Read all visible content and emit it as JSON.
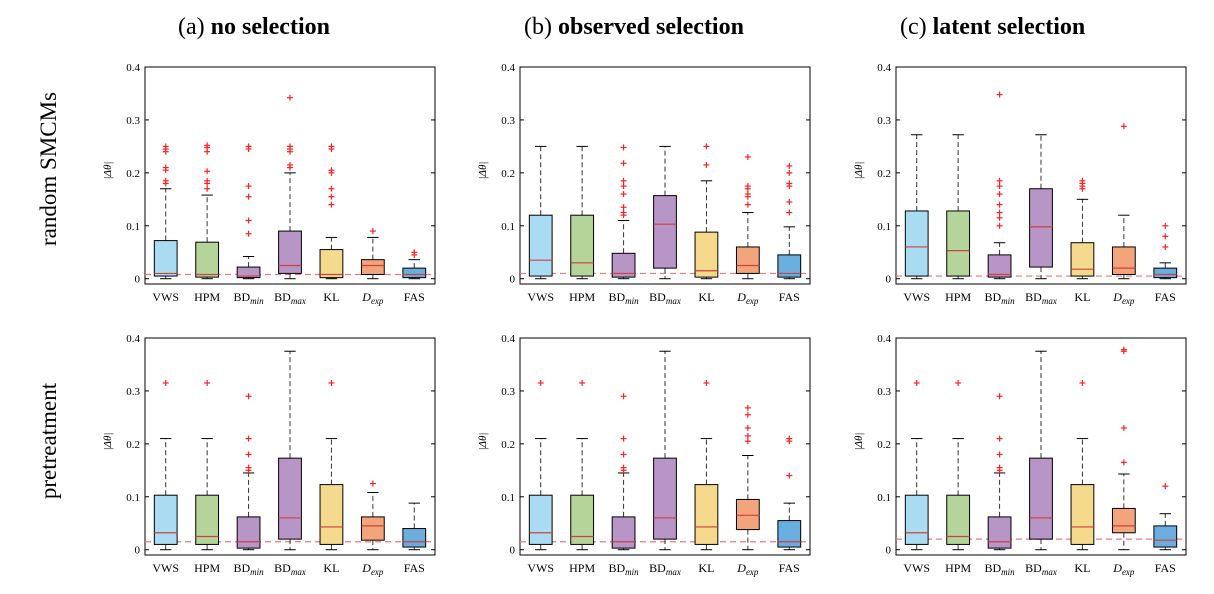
{
  "columns": [
    {
      "prefix": "(a) ",
      "bold": "no selection"
    },
    {
      "prefix": "(b) ",
      "bold": "observed selection"
    },
    {
      "prefix": "(c) ",
      "bold": "latent selection"
    }
  ],
  "rows": [
    "random SMCMs",
    "pretreatment"
  ],
  "colors": {
    "VWS": "#a9dcf3",
    "HPM": "#b5d49a",
    "BDmin": "#b795c6",
    "BDmax": "#b795c6",
    "KL": "#f5d98c",
    "Dexp": "#f2a47a",
    "FAS": "#6aaee0",
    "outlier": "#ff2020",
    "reference": "#e8787c"
  },
  "chart_data": [
    {
      "type": "box",
      "panel": "(a) no selection / random SMCMs",
      "ylabel": "|Δθ|",
      "ylim": [
        -0.01,
        0.4
      ],
      "yticks": [
        0,
        0.1,
        0.2,
        0.3,
        0.4
      ],
      "reference_line": 0.008,
      "categories": [
        "VWS",
        "HPM",
        "BDmin",
        "BDmax",
        "KL",
        "Dexp",
        "FAS"
      ],
      "boxes": [
        {
          "min": 0,
          "q1": 0.005,
          "median": 0.01,
          "q3": 0.072,
          "max": 0.17,
          "outliers": [
            0.185,
            0.18,
            0.205,
            0.21,
            0.24,
            0.245,
            0.25
          ]
        },
        {
          "min": 0,
          "q1": 0.003,
          "median": 0.008,
          "q3": 0.069,
          "max": 0.158,
          "outliers": [
            0.17,
            0.18,
            0.185,
            0.203,
            0.24,
            0.248,
            0.252
          ]
        },
        {
          "min": 0,
          "q1": 0.002,
          "median": 0.005,
          "q3": 0.022,
          "max": 0.042,
          "outliers": [
            0.085,
            0.11,
            0.155,
            0.175,
            0.245,
            0.25
          ]
        },
        {
          "min": 0,
          "q1": 0.01,
          "median": 0.025,
          "q3": 0.09,
          "max": 0.2,
          "outliers": [
            0.21,
            0.215,
            0.24,
            0.245,
            0.25,
            0.342
          ]
        },
        {
          "min": 0,
          "q1": 0.002,
          "median": 0.008,
          "q3": 0.055,
          "max": 0.078,
          "outliers": [
            0.14,
            0.155,
            0.17,
            0.2,
            0.205,
            0.245,
            0.25
          ]
        },
        {
          "min": 0,
          "q1": 0.008,
          "median": 0.025,
          "q3": 0.036,
          "max": 0.078,
          "outliers": [
            0.09
          ]
        },
        {
          "min": 0,
          "q1": 0.002,
          "median": 0.008,
          "q3": 0.02,
          "max": 0.036,
          "outliers": [
            0.045,
            0.05
          ]
        }
      ]
    },
    {
      "type": "box",
      "panel": "(b) observed selection / random SMCMs",
      "ylabel": "|Δθ|",
      "ylim": [
        -0.01,
        0.4
      ],
      "yticks": [
        0,
        0.1,
        0.2,
        0.3,
        0.4
      ],
      "reference_line": 0.01,
      "categories": [
        "VWS",
        "HPM",
        "BDmin",
        "BDmax",
        "KL",
        "Dexp",
        "FAS"
      ],
      "boxes": [
        {
          "min": 0,
          "q1": 0.005,
          "median": 0.035,
          "q3": 0.12,
          "max": 0.25,
          "outliers": []
        },
        {
          "min": 0,
          "q1": 0.005,
          "median": 0.03,
          "q3": 0.12,
          "max": 0.25,
          "outliers": []
        },
        {
          "min": 0,
          "q1": 0.003,
          "median": 0.01,
          "q3": 0.048,
          "max": 0.11,
          "outliers": [
            0.12,
            0.125,
            0.135,
            0.16,
            0.175,
            0.185,
            0.218,
            0.248
          ]
        },
        {
          "min": 0,
          "q1": 0.02,
          "median": 0.103,
          "q3": 0.157,
          "max": 0.25,
          "outliers": []
        },
        {
          "min": 0,
          "q1": 0.003,
          "median": 0.015,
          "q3": 0.088,
          "max": 0.185,
          "outliers": [
            0.215,
            0.25
          ]
        },
        {
          "min": 0,
          "q1": 0.01,
          "median": 0.025,
          "q3": 0.06,
          "max": 0.125,
          "outliers": [
            0.14,
            0.155,
            0.16,
            0.17,
            0.175,
            0.23
          ]
        },
        {
          "min": 0,
          "q1": 0.003,
          "median": 0.01,
          "q3": 0.045,
          "max": 0.098,
          "outliers": [
            0.125,
            0.145,
            0.175,
            0.18,
            0.2,
            0.213
          ]
        }
      ]
    },
    {
      "type": "box",
      "panel": "(c) latent selection / random SMCMs",
      "ylabel": "|Δθ|",
      "ylim": [
        -0.01,
        0.4
      ],
      "yticks": [
        0,
        0.1,
        0.2,
        0.3,
        0.4
      ],
      "reference_line": 0.005,
      "categories": [
        "VWS",
        "HPM",
        "BDmin",
        "BDmax",
        "KL",
        "Dexp",
        "FAS"
      ],
      "boxes": [
        {
          "min": 0,
          "q1": 0.005,
          "median": 0.06,
          "q3": 0.128,
          "max": 0.272,
          "outliers": []
        },
        {
          "min": 0,
          "q1": 0.005,
          "median": 0.053,
          "q3": 0.128,
          "max": 0.272,
          "outliers": []
        },
        {
          "min": 0,
          "q1": 0.003,
          "median": 0.008,
          "q3": 0.045,
          "max": 0.068,
          "outliers": [
            0.1,
            0.115,
            0.125,
            0.14,
            0.16,
            0.175,
            0.185,
            0.348
          ]
        },
        {
          "min": 0,
          "q1": 0.022,
          "median": 0.098,
          "q3": 0.17,
          "max": 0.272,
          "outliers": []
        },
        {
          "min": 0,
          "q1": 0.005,
          "median": 0.018,
          "q3": 0.068,
          "max": 0.15,
          "outliers": [
            0.17,
            0.175,
            0.18,
            0.185
          ]
        },
        {
          "min": 0,
          "q1": 0.008,
          "median": 0.02,
          "q3": 0.06,
          "max": 0.12,
          "outliers": [
            0.288
          ]
        },
        {
          "min": 0,
          "q1": 0.002,
          "median": 0.008,
          "q3": 0.02,
          "max": 0.03,
          "outliers": [
            0.06,
            0.08,
            0.1
          ]
        }
      ]
    },
    {
      "type": "box",
      "panel": "(a) no selection / pretreatment",
      "ylabel": "|Δθ|",
      "ylim": [
        -0.01,
        0.4
      ],
      "yticks": [
        0,
        0.1,
        0.2,
        0.3,
        0.4
      ],
      "reference_line": 0.015,
      "categories": [
        "VWS",
        "HPM",
        "BDmin",
        "BDmax",
        "KL",
        "Dexp",
        "FAS"
      ],
      "boxes": [
        {
          "min": 0,
          "q1": 0.01,
          "median": 0.032,
          "q3": 0.103,
          "max": 0.21,
          "outliers": [
            0.315
          ]
        },
        {
          "min": 0,
          "q1": 0.01,
          "median": 0.025,
          "q3": 0.103,
          "max": 0.21,
          "outliers": [
            0.315
          ]
        },
        {
          "min": 0,
          "q1": 0.003,
          "median": 0.015,
          "q3": 0.062,
          "max": 0.145,
          "outliers": [
            0.15,
            0.155,
            0.18,
            0.21,
            0.29
          ]
        },
        {
          "min": 0,
          "q1": 0.02,
          "median": 0.06,
          "q3": 0.173,
          "max": 0.375,
          "outliers": []
        },
        {
          "min": 0,
          "q1": 0.01,
          "median": 0.043,
          "q3": 0.123,
          "max": 0.21,
          "outliers": [
            0.315
          ]
        },
        {
          "min": 0,
          "q1": 0.018,
          "median": 0.045,
          "q3": 0.062,
          "max": 0.108,
          "outliers": [
            0.125
          ]
        },
        {
          "min": 0,
          "q1": 0.005,
          "median": 0.015,
          "q3": 0.04,
          "max": 0.088,
          "outliers": []
        }
      ]
    },
    {
      "type": "box",
      "panel": "(b) observed selection / pretreatment",
      "ylabel": "|Δθ|",
      "ylim": [
        -0.01,
        0.4
      ],
      "yticks": [
        0,
        0.1,
        0.2,
        0.3,
        0.4
      ],
      "reference_line": 0.015,
      "categories": [
        "VWS",
        "HPM",
        "BDmin",
        "BDmax",
        "KL",
        "Dexp",
        "FAS"
      ],
      "boxes": [
        {
          "min": 0,
          "q1": 0.01,
          "median": 0.032,
          "q3": 0.103,
          "max": 0.21,
          "outliers": [
            0.315
          ]
        },
        {
          "min": 0,
          "q1": 0.01,
          "median": 0.025,
          "q3": 0.103,
          "max": 0.21,
          "outliers": [
            0.315
          ]
        },
        {
          "min": 0,
          "q1": 0.003,
          "median": 0.015,
          "q3": 0.062,
          "max": 0.145,
          "outliers": [
            0.15,
            0.155,
            0.18,
            0.21,
            0.29
          ]
        },
        {
          "min": 0,
          "q1": 0.02,
          "median": 0.06,
          "q3": 0.173,
          "max": 0.375,
          "outliers": []
        },
        {
          "min": 0,
          "q1": 0.01,
          "median": 0.043,
          "q3": 0.123,
          "max": 0.21,
          "outliers": [
            0.315
          ]
        },
        {
          "min": 0,
          "q1": 0.038,
          "median": 0.065,
          "q3": 0.095,
          "max": 0.178,
          "outliers": [
            0.205,
            0.215,
            0.23,
            0.255,
            0.268
          ]
        },
        {
          "min": 0,
          "q1": 0.005,
          "median": 0.015,
          "q3": 0.055,
          "max": 0.088,
          "outliers": [
            0.14,
            0.205,
            0.21
          ]
        }
      ]
    },
    {
      "type": "box",
      "panel": "(c) latent selection / pretreatment",
      "ylabel": "|Δθ|",
      "ylim": [
        -0.01,
        0.4
      ],
      "yticks": [
        0,
        0.1,
        0.2,
        0.3,
        0.4
      ],
      "reference_line": 0.02,
      "categories": [
        "VWS",
        "HPM",
        "BDmin",
        "BDmax",
        "KL",
        "Dexp",
        "FAS"
      ],
      "boxes": [
        {
          "min": 0,
          "q1": 0.01,
          "median": 0.032,
          "q3": 0.103,
          "max": 0.21,
          "outliers": [
            0.315
          ]
        },
        {
          "min": 0,
          "q1": 0.01,
          "median": 0.025,
          "q3": 0.103,
          "max": 0.21,
          "outliers": [
            0.315
          ]
        },
        {
          "min": 0,
          "q1": 0.003,
          "median": 0.015,
          "q3": 0.062,
          "max": 0.145,
          "outliers": [
            0.15,
            0.155,
            0.18,
            0.21,
            0.29
          ]
        },
        {
          "min": 0,
          "q1": 0.02,
          "median": 0.06,
          "q3": 0.173,
          "max": 0.375,
          "outliers": []
        },
        {
          "min": 0,
          "q1": 0.01,
          "median": 0.043,
          "q3": 0.123,
          "max": 0.21,
          "outliers": [
            0.315
          ]
        },
        {
          "min": 0,
          "q1": 0.032,
          "median": 0.045,
          "q3": 0.078,
          "max": 0.143,
          "outliers": [
            0.165,
            0.23,
            0.375,
            0.378
          ]
        },
        {
          "min": 0,
          "q1": 0.005,
          "median": 0.018,
          "q3": 0.045,
          "max": 0.068,
          "outliers": [
            0.12
          ]
        }
      ]
    }
  ]
}
